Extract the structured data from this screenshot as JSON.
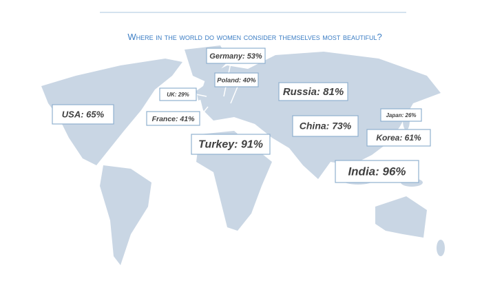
{
  "title": "Where in the world do women consider themselves most beautiful?",
  "labels": [
    {
      "text": "Germany: 53%"
    },
    {
      "text": "Poland: 40%"
    },
    {
      "text": "UK: 29%"
    },
    {
      "text": "Russia: 81%"
    },
    {
      "text": "USA: 65%"
    },
    {
      "text": "France: 41%"
    },
    {
      "text": "China: 73%"
    },
    {
      "text": "Japan: 26%"
    },
    {
      "text": "Korea: 61%"
    },
    {
      "text": "Turkey: 91%"
    },
    {
      "text": "India: 96%"
    }
  ]
}
